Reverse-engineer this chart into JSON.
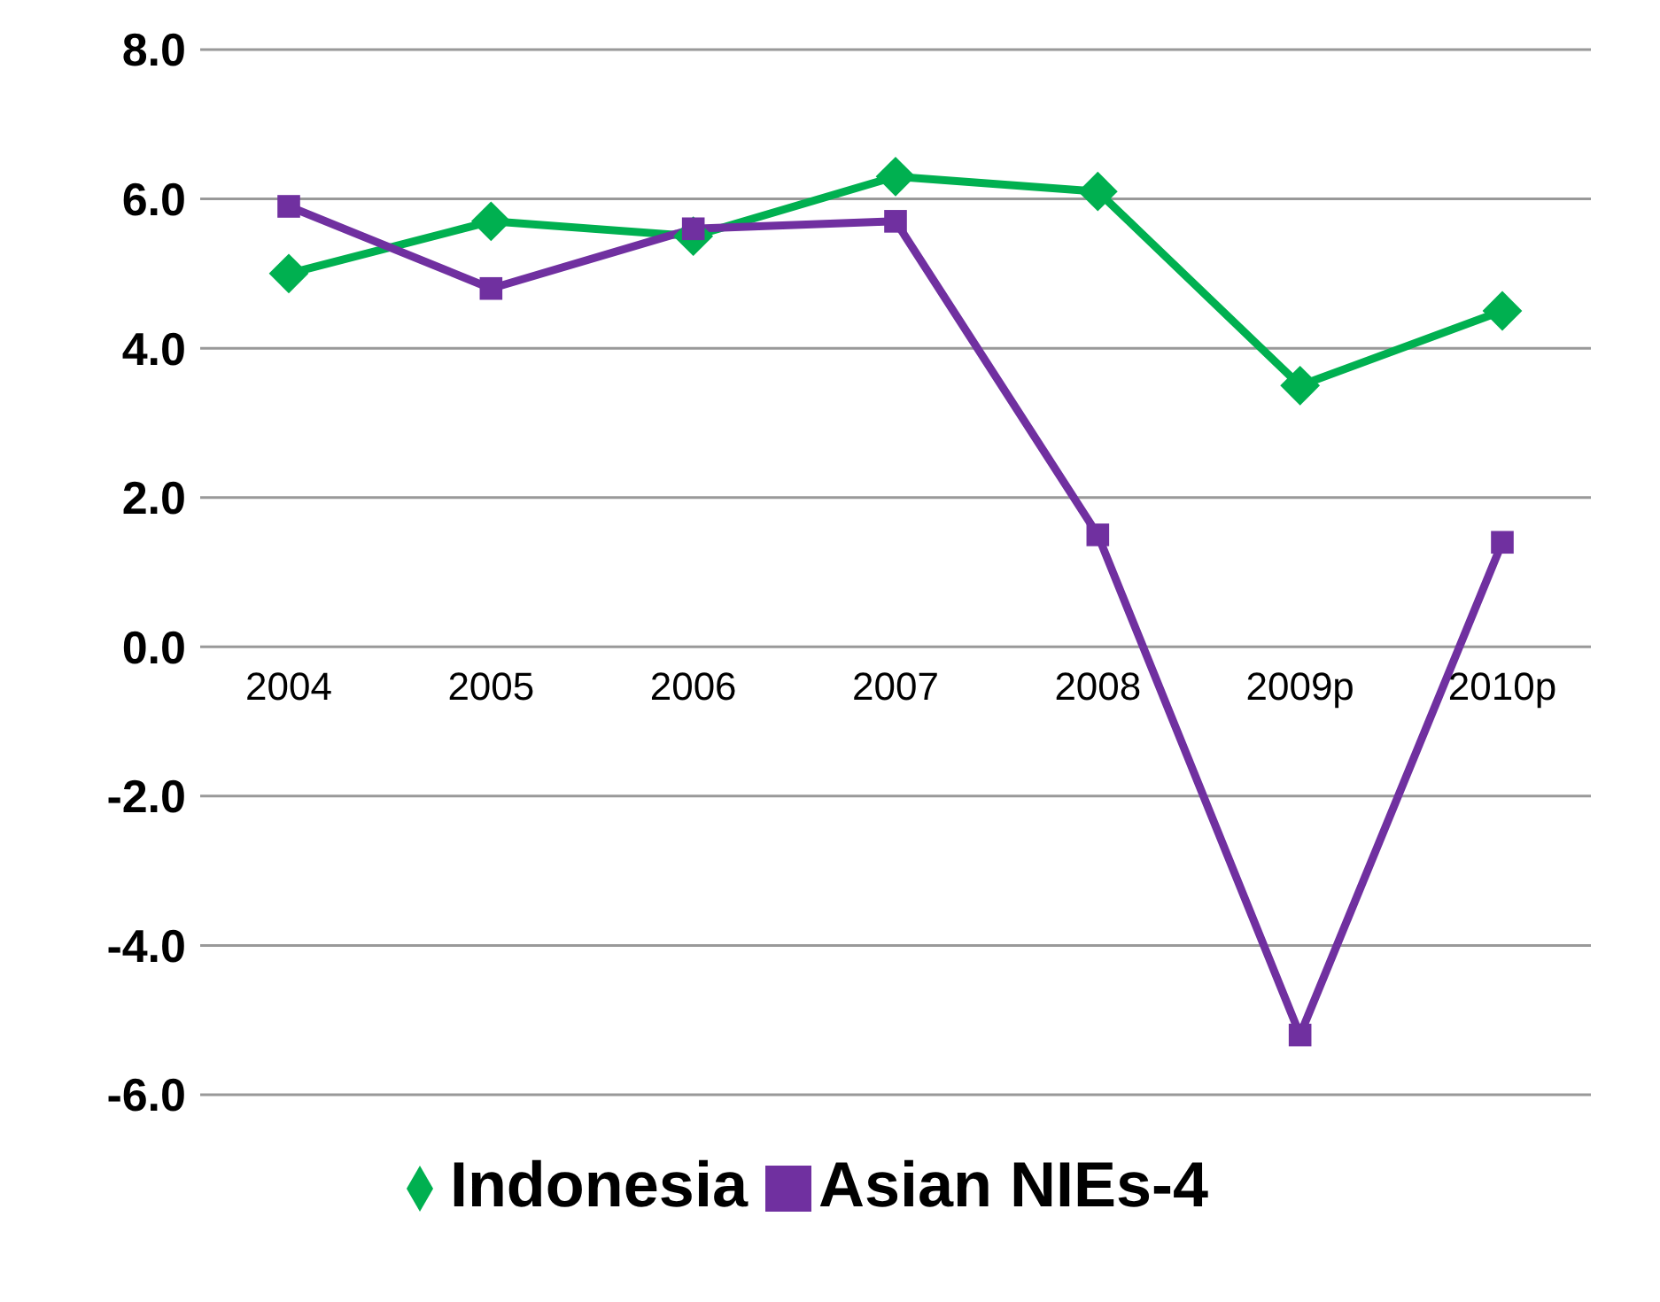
{
  "chart_data": {
    "type": "line",
    "categories": [
      "2004",
      "2005",
      "2006",
      "2007",
      "2008",
      "2009p",
      "2010p"
    ],
    "series": [
      {
        "name": "Indonesia",
        "color": "#00b050",
        "marker": "diamond",
        "values": [
          5.0,
          5.7,
          5.5,
          6.3,
          6.1,
          3.5,
          4.5
        ]
      },
      {
        "name": "Asian NIEs-4",
        "color": "#7030a0",
        "marker": "square",
        "values": [
          5.9,
          4.8,
          5.6,
          5.7,
          1.5,
          -5.2,
          1.4
        ]
      }
    ],
    "ylim": [
      -6,
      8
    ],
    "yticks": [
      {
        "value": -6,
        "label": "-6.0"
      },
      {
        "value": -4,
        "label": "-4.0"
      },
      {
        "value": -2,
        "label": "-2.0"
      },
      {
        "value": 0,
        "label": "0.0"
      },
      {
        "value": 2,
        "label": "2.0"
      },
      {
        "value": 4,
        "label": "4.0"
      },
      {
        "value": 6,
        "label": "6.0"
      },
      {
        "value": 8,
        "label": "8.0"
      }
    ],
    "grid": "y",
    "legend": "bottom"
  }
}
